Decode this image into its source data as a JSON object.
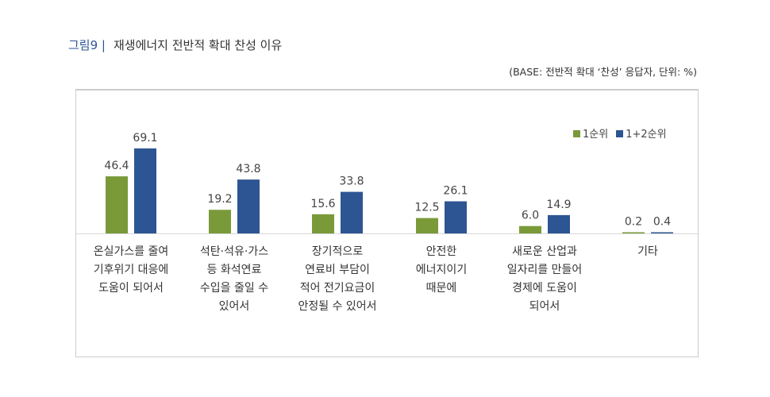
{
  "title": {
    "figure": "그림9 |",
    "text": "재생에너지 전반적 확대 찬성 이유"
  },
  "base_note": "(BASE: 전반적 확대 ‘찬성’ 응답자, 단위: %)",
  "chart_data": {
    "type": "bar",
    "categories": [
      "온실가스를 줄여\n기후위기 대응에\n도움이 되어서",
      "석탄·석유·가스\n등 화석연료\n수입을 줄일 수\n있어서",
      "장기적으로\n연료비 부담이\n적어 전기요금이\n안정될 수 있어서",
      "안전한\n에너지이기\n때문에",
      "새로운 산업과\n일자리를 만들어\n경제에 도움이\n되어서",
      "기타"
    ],
    "series": [
      {
        "name": "1순위",
        "color": "#7a9a3a",
        "values": [
          46.4,
          19.2,
          15.6,
          12.5,
          6.0,
          0.2
        ]
      },
      {
        "name": "1+2순위",
        "color": "#2e5593",
        "values": [
          69.1,
          43.8,
          33.8,
          26.1,
          14.9,
          0.4
        ]
      }
    ],
    "legend": "top-right",
    "grid": false,
    "ylim": [
      0,
      80
    ]
  }
}
